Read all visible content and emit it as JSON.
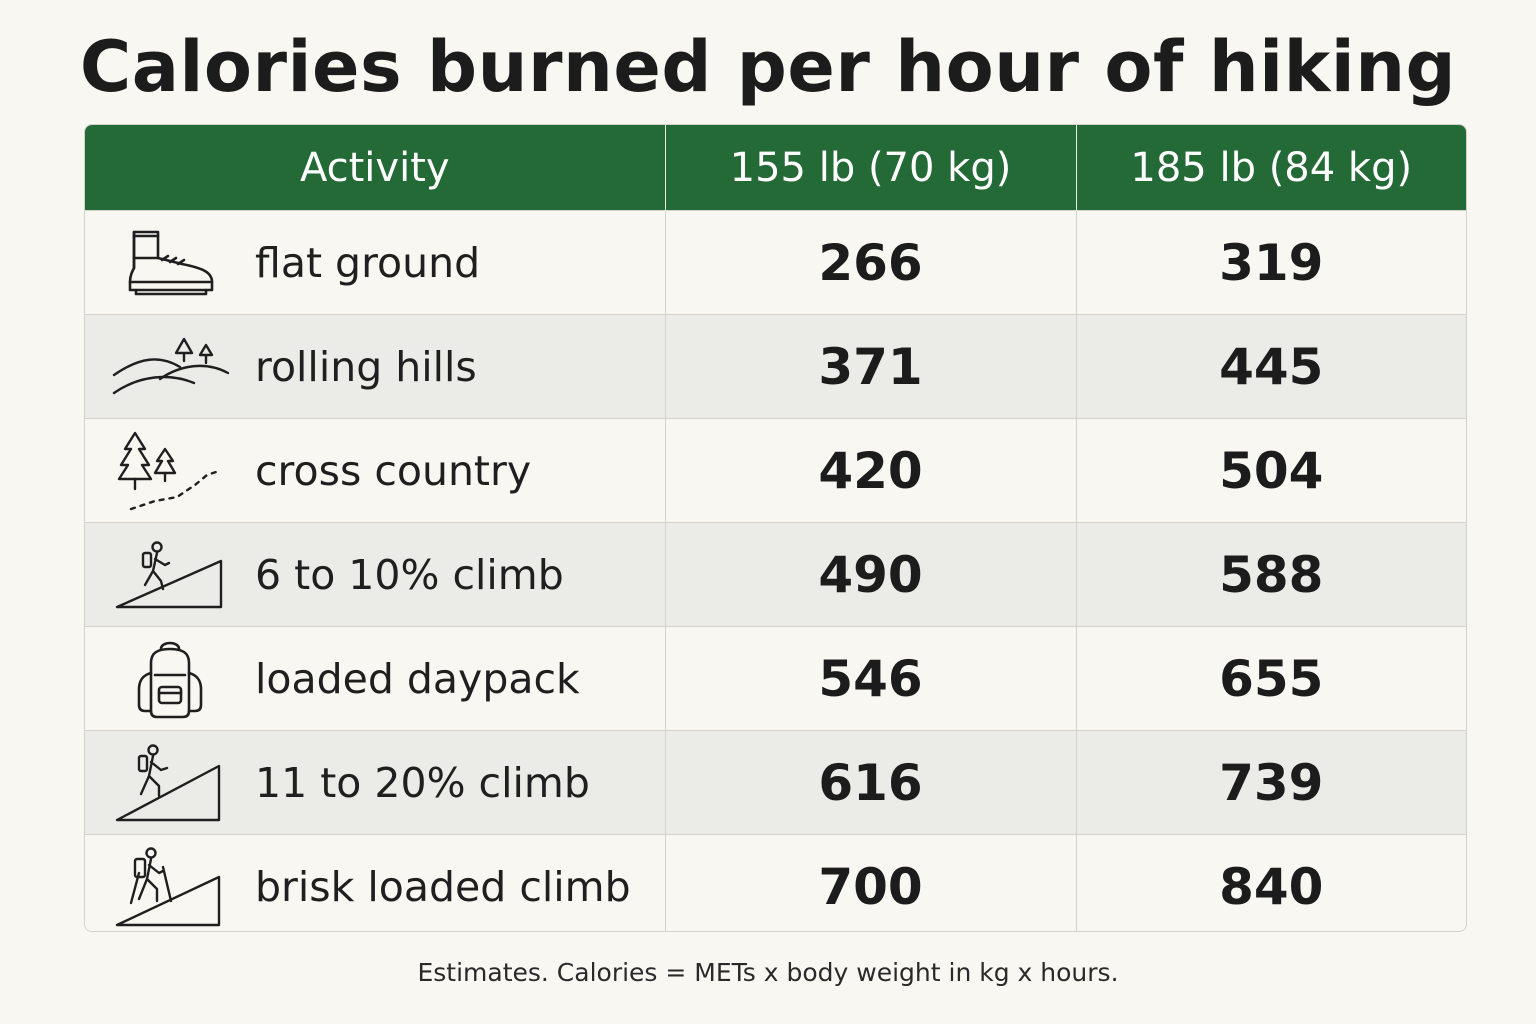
{
  "title": "Calories burned per hour of hiking",
  "table": {
    "headers": [
      "Activity",
      "155 lb (70 kg)",
      "185 lb (84 kg)"
    ],
    "rows": [
      {
        "icon": "hiking-boot-icon",
        "activity": "flat ground",
        "v155": "266",
        "v185": "319"
      },
      {
        "icon": "rolling-hills-icon",
        "activity": "rolling hills",
        "v155": "371",
        "v185": "445"
      },
      {
        "icon": "trees-trail-icon",
        "activity": "cross country",
        "v155": "420",
        "v185": "504"
      },
      {
        "icon": "hiker-slope-icon",
        "activity": "6 to 10% climb",
        "v155": "490",
        "v185": "588"
      },
      {
        "icon": "backpack-icon",
        "activity": "loaded daypack",
        "v155": "546",
        "v185": "655"
      },
      {
        "icon": "hiker-steep-slope-icon",
        "activity": "11 to 20% climb",
        "v155": "616",
        "v185": "739"
      },
      {
        "icon": "hiker-poles-slope-icon",
        "activity": "brisk loaded climb",
        "v155": "700",
        "v185": "840"
      }
    ]
  },
  "footnote": "Estimates. Calories = METs x body weight in kg x hours.",
  "colors": {
    "header_bg": "#236a37",
    "page_bg": "#f8f7f2",
    "stripe_bg": "#ebebe7"
  }
}
